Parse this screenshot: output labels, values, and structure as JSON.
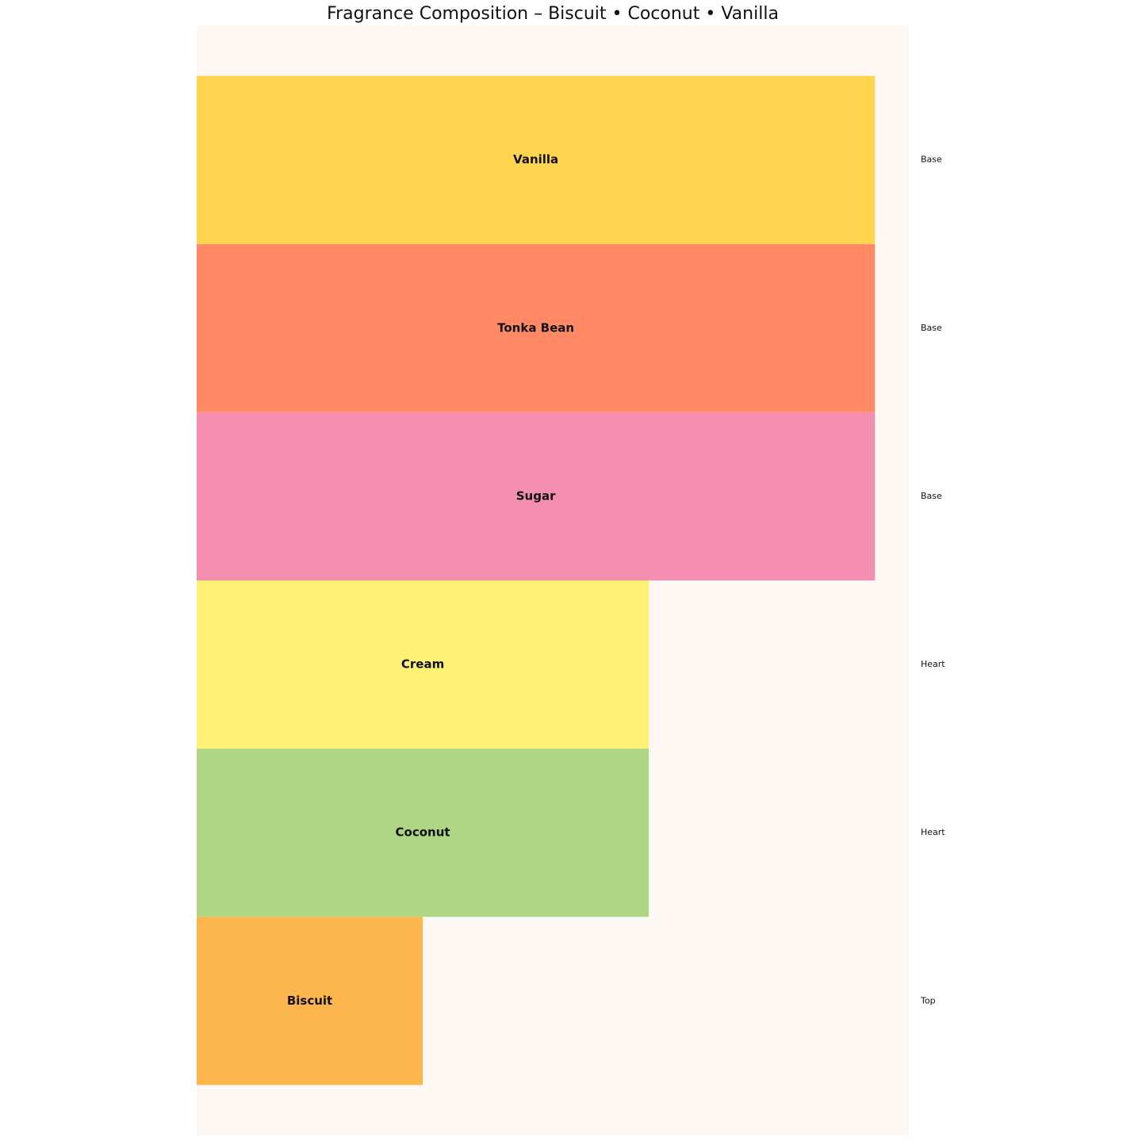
{
  "chart_data": {
    "type": "bar",
    "orientation": "horizontal",
    "title": "Fragrance Composition – Biscuit • Coconut • Vanilla",
    "categories": [
      "Biscuit",
      "Coconut",
      "Cream",
      "Sugar",
      "Tonka Bean",
      "Vanilla"
    ],
    "values": [
      1,
      2,
      2,
      3,
      3,
      3
    ],
    "layers": [
      "Top",
      "Heart",
      "Heart",
      "Base",
      "Base",
      "Base"
    ],
    "colors": [
      "#fdb54e",
      "#aed685",
      "#fff176",
      "#f48fb1",
      "#ff8a65",
      "#ffd54f"
    ],
    "background": "#fdf8f3",
    "xlim": [
      0,
      3.15
    ]
  }
}
